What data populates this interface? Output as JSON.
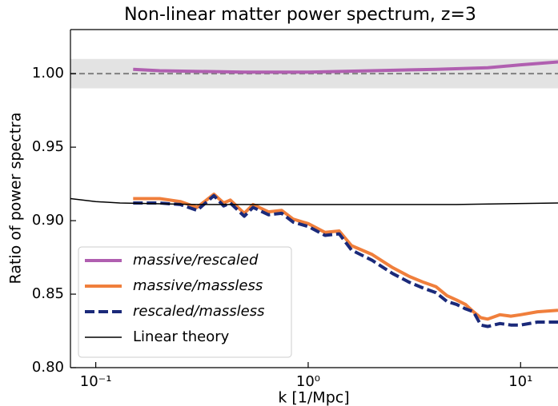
{
  "chart_data": {
    "type": "line",
    "title": "Non-linear matter power spectrum, z=3",
    "xlabel": "k [1/Mpc]",
    "ylabel": "Ratio of power spectra",
    "xscale": "log",
    "xlim": [
      0.076,
      15
    ],
    "ylim": [
      0.8,
      1.03
    ],
    "xticks": [
      {
        "value": 0.1,
        "label": "10⁻¹"
      },
      {
        "value": 1,
        "label": "10⁰"
      },
      {
        "value": 10,
        "label": "10¹"
      }
    ],
    "yticks": [
      {
        "value": 0.8,
        "label": "0.80"
      },
      {
        "value": 0.85,
        "label": "0.85"
      },
      {
        "value": 0.9,
        "label": "0.90"
      },
      {
        "value": 0.95,
        "label": "0.95"
      },
      {
        "value": 1.0,
        "label": "1.00"
      }
    ],
    "band": [
      0.99,
      1.01
    ],
    "reference_line": 1.0,
    "legend": "lower left",
    "series": [
      {
        "name": "massive/rescaled",
        "color": "#b05fb0",
        "dashed": false,
        "italic": true,
        "x": [
          0.15,
          0.2,
          0.5,
          1,
          2,
          4,
          7,
          10,
          15
        ],
        "values": [
          1.003,
          1.002,
          1.001,
          1.001,
          1.002,
          1.003,
          1.004,
          1.006,
          1.008
        ]
      },
      {
        "name": "massive/massless",
        "color": "#f07f3c",
        "dashed": false,
        "italic": true,
        "x": [
          0.15,
          0.2,
          0.25,
          0.3,
          0.36,
          0.4,
          0.43,
          0.5,
          0.55,
          0.65,
          0.75,
          0.85,
          1.0,
          1.2,
          1.4,
          1.6,
          2.0,
          2.5,
          3,
          3.5,
          4,
          4.5,
          5,
          5.5,
          6,
          6.5,
          7,
          8,
          9,
          10,
          12,
          15
        ],
        "values": [
          0.915,
          0.915,
          0.913,
          0.909,
          0.918,
          0.912,
          0.914,
          0.905,
          0.911,
          0.906,
          0.907,
          0.901,
          0.898,
          0.892,
          0.893,
          0.883,
          0.877,
          0.868,
          0.862,
          0.858,
          0.855,
          0.849,
          0.846,
          0.843,
          0.838,
          0.834,
          0.833,
          0.836,
          0.835,
          0.836,
          0.838,
          0.839
        ]
      },
      {
        "name": "rescaled/massless",
        "color": "#1b2a7a",
        "dashed": true,
        "italic": true,
        "x": [
          0.15,
          0.2,
          0.25,
          0.3,
          0.36,
          0.4,
          0.43,
          0.5,
          0.55,
          0.65,
          0.75,
          0.85,
          1.0,
          1.2,
          1.4,
          1.6,
          2.0,
          2.5,
          3,
          3.5,
          4,
          4.5,
          5,
          5.5,
          6,
          6.5,
          7,
          8,
          9,
          10,
          12,
          15
        ],
        "values": [
          0.912,
          0.912,
          0.911,
          0.907,
          0.917,
          0.91,
          0.912,
          0.903,
          0.909,
          0.904,
          0.905,
          0.899,
          0.896,
          0.89,
          0.891,
          0.88,
          0.873,
          0.864,
          0.858,
          0.854,
          0.851,
          0.845,
          0.843,
          0.84,
          0.838,
          0.829,
          0.828,
          0.83,
          0.829,
          0.829,
          0.831,
          0.831
        ]
      },
      {
        "name": "Linear theory",
        "color": "#000000",
        "dashed": false,
        "italic": false,
        "x": [
          0.076,
          0.1,
          0.13,
          0.3,
          1,
          5,
          15
        ],
        "values": [
          0.915,
          0.913,
          0.912,
          0.911,
          0.911,
          0.911,
          0.912
        ]
      }
    ]
  }
}
